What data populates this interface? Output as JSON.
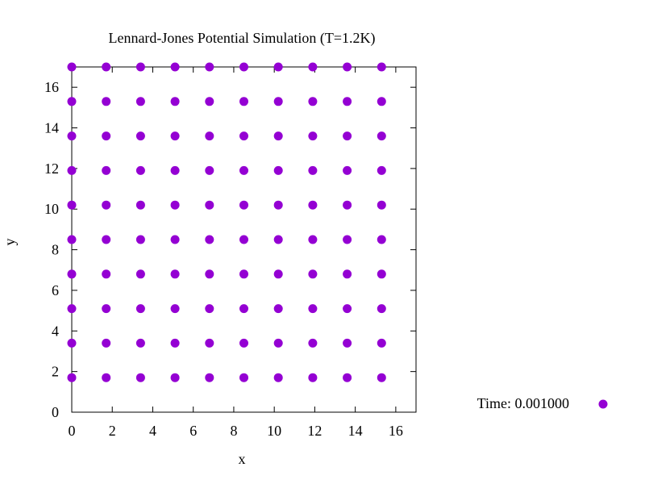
{
  "chart_data": {
    "type": "scatter",
    "title": "Lennard-Jones Potential Simulation (T=1.2K)",
    "xlabel": "x",
    "ylabel": "y",
    "xlim": [
      0,
      17
    ],
    "ylim": [
      0,
      17
    ],
    "x_ticks": [
      0,
      2,
      4,
      6,
      8,
      10,
      12,
      14,
      16
    ],
    "y_ticks": [
      0,
      2,
      4,
      6,
      8,
      10,
      12,
      14,
      16
    ],
    "grid": false,
    "legend_position": "right",
    "series": [
      {
        "name": "Time: 0.001000",
        "color": "#9400D3",
        "marker": "circle",
        "points": [
          [
            0.0,
            1.7
          ],
          [
            0.0,
            3.4
          ],
          [
            0.0,
            5.1
          ],
          [
            0.0,
            6.8
          ],
          [
            0.0,
            8.5
          ],
          [
            0.0,
            10.2
          ],
          [
            0.0,
            11.9
          ],
          [
            0.0,
            13.6
          ],
          [
            0.0,
            15.3
          ],
          [
            0.0,
            17.0
          ],
          [
            1.7,
            1.7
          ],
          [
            1.7,
            3.4
          ],
          [
            1.7,
            5.1
          ],
          [
            1.7,
            6.8
          ],
          [
            1.7,
            8.5
          ],
          [
            1.7,
            10.2
          ],
          [
            1.7,
            11.9
          ],
          [
            1.7,
            13.6
          ],
          [
            1.7,
            15.3
          ],
          [
            1.7,
            17.0
          ],
          [
            3.4,
            1.7
          ],
          [
            3.4,
            3.4
          ],
          [
            3.4,
            5.1
          ],
          [
            3.4,
            6.8
          ],
          [
            3.4,
            8.5
          ],
          [
            3.4,
            10.2
          ],
          [
            3.4,
            11.9
          ],
          [
            3.4,
            13.6
          ],
          [
            3.4,
            15.3
          ],
          [
            3.4,
            17.0
          ],
          [
            5.1,
            1.7
          ],
          [
            5.1,
            3.4
          ],
          [
            5.1,
            5.1
          ],
          [
            5.1,
            6.8
          ],
          [
            5.1,
            8.5
          ],
          [
            5.1,
            10.2
          ],
          [
            5.1,
            11.9
          ],
          [
            5.1,
            13.6
          ],
          [
            5.1,
            15.3
          ],
          [
            5.1,
            17.0
          ],
          [
            6.8,
            1.7
          ],
          [
            6.8,
            3.4
          ],
          [
            6.8,
            5.1
          ],
          [
            6.8,
            6.8
          ],
          [
            6.8,
            8.5
          ],
          [
            6.8,
            10.2
          ],
          [
            6.8,
            11.9
          ],
          [
            6.8,
            13.6
          ],
          [
            6.8,
            15.3
          ],
          [
            6.8,
            17.0
          ],
          [
            8.5,
            1.7
          ],
          [
            8.5,
            3.4
          ],
          [
            8.5,
            5.1
          ],
          [
            8.5,
            6.8
          ],
          [
            8.5,
            8.5
          ],
          [
            8.5,
            10.2
          ],
          [
            8.5,
            11.9
          ],
          [
            8.5,
            13.6
          ],
          [
            8.5,
            15.3
          ],
          [
            8.5,
            17.0
          ],
          [
            10.2,
            1.7
          ],
          [
            10.2,
            3.4
          ],
          [
            10.2,
            5.1
          ],
          [
            10.2,
            6.8
          ],
          [
            10.2,
            8.5
          ],
          [
            10.2,
            10.2
          ],
          [
            10.2,
            11.9
          ],
          [
            10.2,
            13.6
          ],
          [
            10.2,
            15.3
          ],
          [
            10.2,
            17.0
          ],
          [
            11.9,
            1.7
          ],
          [
            11.9,
            3.4
          ],
          [
            11.9,
            5.1
          ],
          [
            11.9,
            6.8
          ],
          [
            11.9,
            8.5
          ],
          [
            11.9,
            10.2
          ],
          [
            11.9,
            11.9
          ],
          [
            11.9,
            13.6
          ],
          [
            11.9,
            15.3
          ],
          [
            11.9,
            17.0
          ],
          [
            13.6,
            1.7
          ],
          [
            13.6,
            3.4
          ],
          [
            13.6,
            5.1
          ],
          [
            13.6,
            6.8
          ],
          [
            13.6,
            8.5
          ],
          [
            13.6,
            10.2
          ],
          [
            13.6,
            11.9
          ],
          [
            13.6,
            13.6
          ],
          [
            13.6,
            15.3
          ],
          [
            13.6,
            17.0
          ],
          [
            15.3,
            1.7
          ],
          [
            15.3,
            3.4
          ],
          [
            15.3,
            5.1
          ],
          [
            15.3,
            6.8
          ],
          [
            15.3,
            8.5
          ],
          [
            15.3,
            10.2
          ],
          [
            15.3,
            11.9
          ],
          [
            15.3,
            13.6
          ],
          [
            15.3,
            15.3
          ],
          [
            15.3,
            17.0
          ]
        ]
      }
    ]
  }
}
